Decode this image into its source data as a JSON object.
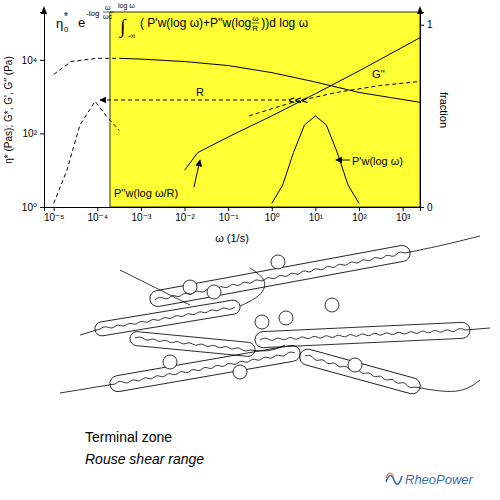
{
  "chart_data": {
    "type": "line",
    "formula": {
      "prefix": "η",
      "prefix_sub": "0",
      "prefix_sup": "*",
      "e": "e",
      "exp": "-log",
      "exp_num": "ω",
      "exp_den": "ωc",
      "integral": "∫",
      "upper": "log ω",
      "lower": "-∞",
      "integrand": "( P'w(log ω)+P''w(log ",
      "integrand_num": "ω",
      "integrand_den": "R",
      "integrand_end": "))d log ω"
    },
    "x_label": "ω (1/s)",
    "y_label": "η* (Pas); G*, G', G'' (Pa)",
    "y2_label": "fraction",
    "log": true,
    "grid": false,
    "xlim": [
      6e-06,
      2500
    ],
    "xticks": [
      {
        "value": 1e-05,
        "label": "10⁻⁵"
      },
      {
        "value": 0.0001,
        "label": "10⁻⁴"
      },
      {
        "value": 0.001,
        "label": "10⁻³"
      },
      {
        "value": 0.01,
        "label": "10⁻²"
      },
      {
        "value": 0.1,
        "label": "10⁻¹"
      },
      {
        "value": 1,
        "label": "10⁰"
      },
      {
        "value": 10,
        "label": "10¹"
      },
      {
        "value": 100,
        "label": "10²"
      },
      {
        "value": 1000,
        "label": "10³"
      }
    ],
    "ylim": [
      1,
      200000
    ],
    "yticks": [
      {
        "value": 1,
        "label": "10⁰"
      },
      {
        "value": 100,
        "label": "10²"
      },
      {
        "value": 10000,
        "label": "10⁴"
      }
    ],
    "y2lim": [
      0,
      1.07
    ],
    "y2ticks": [
      0,
      1
    ],
    "series": [
      {
        "color": "#000000",
        "line_style": "dashed",
        "x": [
          1e-05,
          2.5e-05,
          0.0001,
          0.00032
        ],
        "values": [
          4000,
          9000,
          11000,
          11000
        ]
      },
      {
        "color": "#000000",
        "line_style": "solid",
        "x": [
          0.00032,
          0.001,
          0.01,
          0.1,
          1,
          10,
          100,
          2500
        ],
        "values": [
          11000,
          10500,
          9000,
          7000,
          4500,
          2500,
          1300,
          700
        ]
      },
      {
        "color": "#000000",
        "line_style": "solid",
        "x": [
          0.01,
          0.02,
          0.1,
          1,
          10,
          100,
          2500
        ],
        "values": [
          10,
          30,
          80,
          300,
          1200,
          5000,
          40000
        ]
      },
      {
        "color": "#000000",
        "line_style": "dashed",
        "x": [
          0.3,
          3,
          30,
          300,
          2500
        ],
        "values": [
          300,
          700,
          1300,
          2000,
          2600
        ]
      },
      {
        "color": "#000000",
        "line_style": "solid",
        "axis": "y2",
        "x": [
          1,
          1.78,
          3.16,
          5.62,
          10,
          17.8,
          31.6,
          56.2,
          100
        ],
        "values": [
          0.02,
          0.12,
          0.3,
          0.45,
          0.5,
          0.45,
          0.3,
          0.12,
          0.02
        ]
      },
      {
        "color": "#000000",
        "line_style": "dashed",
        "axis": "y2",
        "x": [
          1e-05,
          2e-05,
          4e-05,
          8.9e-05,
          0.00016,
          0.00032
        ],
        "values": [
          0.02,
          0.2,
          0.45,
          0.58,
          0.5,
          0.42
        ]
      }
    ],
    "annotations": [
      {
        "text": "R"
      },
      {
        "text": "<<<"
      },
      {
        "text": "G''"
      },
      {
        "text": "P''w(log ω/R)"
      },
      {
        "text": "P'w(log ω)"
      }
    ]
  },
  "caption": {
    "title": "Terminal zone",
    "subtitle": "Rouse shear range"
  },
  "logo": "RheoPower"
}
